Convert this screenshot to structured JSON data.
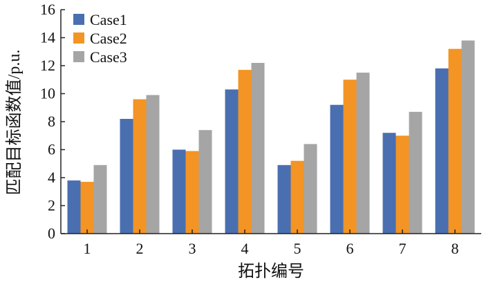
{
  "chart_data": {
    "type": "bar",
    "categories": [
      "1",
      "2",
      "3",
      "4",
      "5",
      "6",
      "7",
      "8"
    ],
    "series": [
      {
        "name": "Case1",
        "color": "#4a6fb0",
        "values": [
          3.8,
          8.2,
          6.0,
          10.3,
          4.9,
          9.2,
          7.2,
          11.8
        ]
      },
      {
        "name": "Case2",
        "color": "#f39424",
        "values": [
          3.7,
          9.6,
          5.9,
          11.7,
          5.2,
          11.0,
          7.0,
          13.2
        ]
      },
      {
        "name": "Case3",
        "color": "#a5a5a5",
        "values": [
          4.9,
          9.9,
          7.4,
          12.2,
          6.4,
          11.5,
          8.7,
          13.8
        ]
      }
    ],
    "xlabel": "拓扑编号",
    "ylabel": "匹配目标函数值/p.u.",
    "ylim": [
      0,
      16
    ],
    "yticks": [
      0,
      2,
      4,
      6,
      8,
      10,
      12,
      14,
      16
    ],
    "grid": false,
    "legend": "top-left"
  }
}
